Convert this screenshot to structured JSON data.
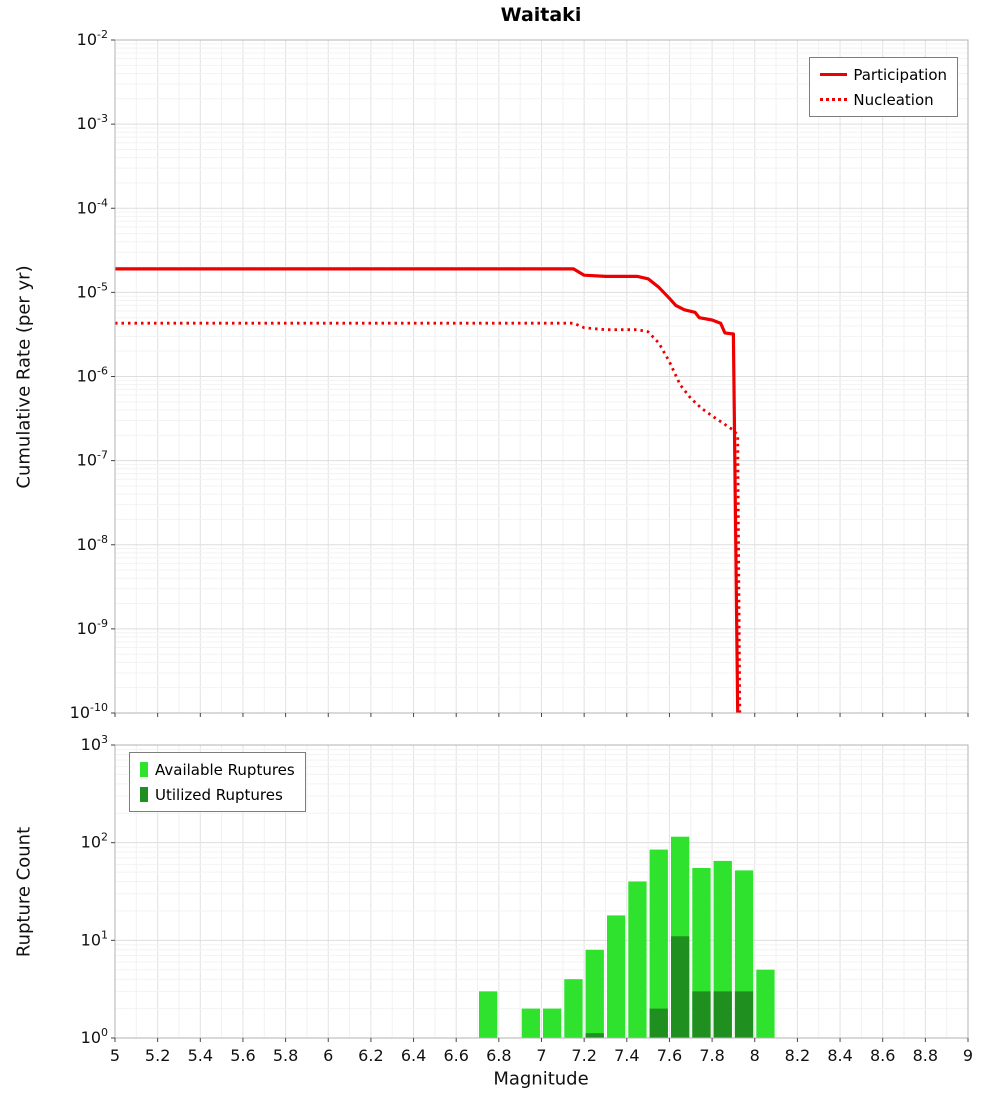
{
  "title": "Waitaki",
  "axes": {
    "xlabel": "Magnitude",
    "top_ylabel": "Cumulative Rate (per yr)",
    "bottom_ylabel": "Rupture Count"
  },
  "chart_data": [
    {
      "id": "cumulative-rate",
      "type": "line",
      "title": "Waitaki",
      "xlabel": "Magnitude",
      "ylabel": "Cumulative Rate (per yr)",
      "x_range": [
        5,
        9
      ],
      "y_scale": "log",
      "y_range_exponents": [
        -10,
        -2
      ],
      "y_tick_exponents": [
        -2,
        -3,
        -4,
        -5,
        -6,
        -7,
        -8,
        -9,
        -10
      ],
      "grid": true,
      "legend_position": "top-right",
      "series": [
        {
          "name": "Participation",
          "line_style": "solid",
          "color": "#ee0000",
          "points": [
            [
              5.0,
              1.9e-05
            ],
            [
              7.15,
              1.9e-05
            ],
            [
              7.2,
              1.6e-05
            ],
            [
              7.3,
              1.55e-05
            ],
            [
              7.45,
              1.55e-05
            ],
            [
              7.5,
              1.45e-05
            ],
            [
              7.55,
              1.15e-05
            ],
            [
              7.6,
              8.5e-06
            ],
            [
              7.63,
              7e-06
            ],
            [
              7.67,
              6.2e-06
            ],
            [
              7.72,
              5.8e-06
            ],
            [
              7.74,
              5e-06
            ],
            [
              7.8,
              4.7e-06
            ],
            [
              7.84,
              4.3e-06
            ],
            [
              7.86,
              3.3e-06
            ],
            [
              7.9,
              3.2e-06
            ],
            [
              7.92,
              1e-10
            ]
          ]
        },
        {
          "name": "Nucleation",
          "line_style": "dotted",
          "color": "#ee0000",
          "points": [
            [
              5.0,
              4.3e-06
            ],
            [
              7.15,
              4.3e-06
            ],
            [
              7.2,
              3.8e-06
            ],
            [
              7.3,
              3.6e-06
            ],
            [
              7.45,
              3.6e-06
            ],
            [
              7.5,
              3.4e-06
            ],
            [
              7.55,
              2.5e-06
            ],
            [
              7.6,
              1.5e-06
            ],
            [
              7.65,
              8e-07
            ],
            [
              7.7,
              5.5e-07
            ],
            [
              7.75,
              4.2e-07
            ],
            [
              7.8,
              3.4e-07
            ],
            [
              7.85,
              2.8e-07
            ],
            [
              7.9,
              2.3e-07
            ],
            [
              7.92,
              2e-07
            ],
            [
              7.93,
              1e-10
            ]
          ]
        }
      ]
    },
    {
      "id": "rupture-count",
      "type": "bar",
      "xlabel": "Magnitude",
      "ylabel": "Rupture Count",
      "x_range": [
        5,
        9
      ],
      "x_tick_labels": [
        "5",
        "5.2",
        "5.4",
        "5.6",
        "5.8",
        "6",
        "6.2",
        "6.4",
        "6.6",
        "6.8",
        "7",
        "7.2",
        "7.4",
        "7.6",
        "7.8",
        "8",
        "8.2",
        "8.4",
        "8.6",
        "8.8",
        "9"
      ],
      "y_scale": "log",
      "y_range_exponents": [
        0,
        3
      ],
      "y_tick_exponents": [
        0,
        1,
        2,
        3
      ],
      "bar_width_mag": 0.1,
      "grid": true,
      "legend_position": "top-left",
      "series": [
        {
          "name": "Available Ruptures",
          "color": "#2ee22e"
        },
        {
          "name": "Utilized Ruptures",
          "color": "#1f8f1f"
        }
      ],
      "bars": [
        {
          "mag": 6.75,
          "available": 3,
          "utilized": 0
        },
        {
          "mag": 6.95,
          "available": 2,
          "utilized": 0
        },
        {
          "mag": 7.05,
          "available": 2,
          "utilized": 0
        },
        {
          "mag": 7.15,
          "available": 4,
          "utilized": 0
        },
        {
          "mag": 7.25,
          "available": 8,
          "utilized": 1
        },
        {
          "mag": 7.35,
          "available": 18,
          "utilized": 0
        },
        {
          "mag": 7.45,
          "available": 40,
          "utilized": 0
        },
        {
          "mag": 7.55,
          "available": 85,
          "utilized": 2
        },
        {
          "mag": 7.65,
          "available": 115,
          "utilized": 11
        },
        {
          "mag": 7.75,
          "available": 55,
          "utilized": 3
        },
        {
          "mag": 7.85,
          "available": 65,
          "utilized": 3
        },
        {
          "mag": 7.95,
          "available": 52,
          "utilized": 3
        },
        {
          "mag": 8.05,
          "available": 5,
          "utilized": 0
        }
      ]
    }
  ]
}
